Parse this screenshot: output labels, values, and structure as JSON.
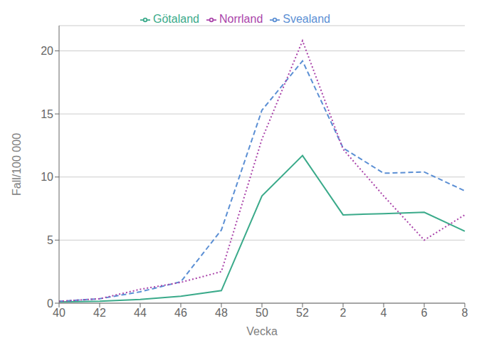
{
  "chart_data": {
    "type": "line",
    "xlabel": "Vecka",
    "ylabel": "Fall/100 000",
    "categories": [
      "40",
      "42",
      "44",
      "46",
      "48",
      "50",
      "52",
      "2",
      "4",
      "6",
      "8"
    ],
    "series": [
      {
        "name": "Götaland",
        "color": "#3aaa8a",
        "line_style": "solid",
        "values": [
          0.1,
          0.15,
          0.3,
          0.55,
          1.0,
          8.5,
          11.7,
          7.0,
          7.1,
          7.2,
          5.7
        ]
      },
      {
        "name": "Svealand",
        "color": "#5b8fd4",
        "line_style": "dashed",
        "values": [
          0.15,
          0.35,
          0.9,
          1.7,
          5.8,
          15.3,
          19.2,
          12.3,
          10.3,
          10.4,
          8.9
        ]
      },
      {
        "name": "Norrland",
        "color": "#aa44aa",
        "line_style": "dotted",
        "values": [
          0.15,
          0.35,
          1.1,
          1.65,
          2.5,
          13.0,
          20.8,
          12.2,
          8.5,
          5.0,
          7.0
        ]
      }
    ],
    "ylim": [
      0,
      22
    ],
    "yticks": [
      0,
      5,
      10,
      15,
      20
    ],
    "grid": true,
    "legend": "top"
  }
}
